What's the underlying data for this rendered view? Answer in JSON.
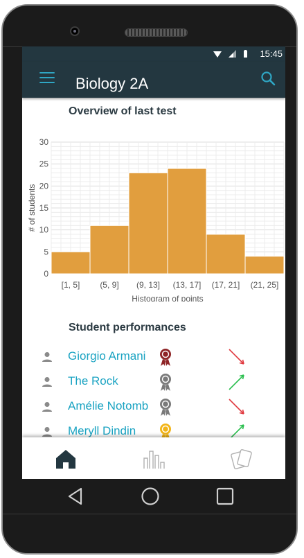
{
  "status": {
    "time": "15:45"
  },
  "appbar": {
    "title": "Biology 2A"
  },
  "overview": {
    "title": "Overview of last test"
  },
  "chart_data": {
    "type": "bar",
    "title": "",
    "xlabel": "Histogram of points",
    "ylabel": "# of students",
    "categories": [
      "[1, 5]",
      "(5, 9]",
      "(9, 13]",
      "(13, 17]",
      "(17, 21]",
      "(21, 25]"
    ],
    "values": [
      5,
      11,
      23,
      24,
      9,
      4
    ],
    "ylim": [
      0,
      30
    ],
    "yticks": [
      0,
      5,
      10,
      15,
      20,
      25,
      30
    ],
    "grid": true,
    "bar_color": "#e19e3e"
  },
  "performances": {
    "title": "Student performances",
    "students": [
      {
        "name": "Giorgio Armani",
        "medal": "medal-icon",
        "medal_color": "#8e2426",
        "trend": "trend-down-icon",
        "trend_color": "#e0383e"
      },
      {
        "name": "The Rock",
        "medal": "medal-icon",
        "medal_color": "#7a7a7a",
        "trend": "trend-up-icon",
        "trend_color": "#2bbf4f"
      },
      {
        "name": "Amélie Notomb",
        "medal": "medal-icon",
        "medal_color": "#7a7a7a",
        "trend": "trend-down-icon",
        "trend_color": "#e0383e"
      },
      {
        "name": "Meryll Dindin",
        "medal": "medal-icon",
        "medal_color": "#f2b417",
        "trend": "trend-up-icon",
        "trend_color": "#2bbf4f"
      }
    ]
  },
  "bottom_nav": {
    "items": [
      "home-icon",
      "stats-icon",
      "cards-icon"
    ],
    "active_color": "#233740",
    "inactive_color": "#b8b8b8"
  },
  "colors": {
    "appbar": "#233740",
    "accent": "#1aa3c2"
  }
}
